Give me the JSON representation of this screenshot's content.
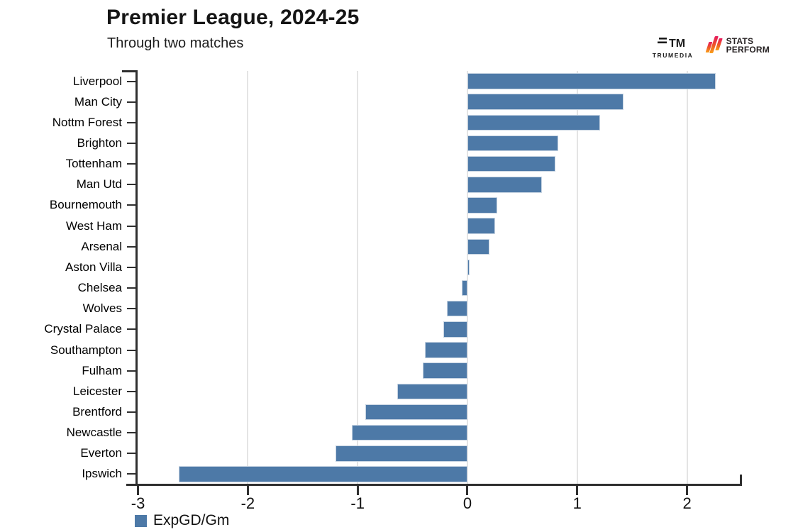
{
  "header": {
    "title": "Premier League, 2024-25",
    "subtitle": "Through two matches"
  },
  "branding": {
    "trumedia_icon_text": "TM",
    "trumedia_label": "TRUMEDIA",
    "statsperform_line1": "STATS",
    "statsperform_line2": "PERFORM"
  },
  "legend": {
    "label": "ExpGD/Gm"
  },
  "colors": {
    "bar": "#4d79a7",
    "bar_border": "#c7d4e2",
    "axis": "#2f2f2f",
    "gridline": "#e4e4e4"
  },
  "chart_data": {
    "type": "bar",
    "orientation": "horizontal",
    "title": "Premier League, 2024-25",
    "subtitle": "Through two matches",
    "series_label": "ExpGD/Gm",
    "legend_position": "bottom-left",
    "grid": true,
    "xlim": [
      -3.01,
      2.5
    ],
    "x_ticks": [
      {
        "label": "-3",
        "value": -3,
        "gridline": false
      },
      {
        "label": "-2",
        "value": -2,
        "gridline": true
      },
      {
        "label": "-1",
        "value": -1,
        "gridline": true
      },
      {
        "label": "0",
        "value": 0,
        "gridline": true
      },
      {
        "label": "1",
        "value": 1,
        "gridline": true
      },
      {
        "label": "2",
        "value": 2,
        "gridline": true
      }
    ],
    "categories": [
      "Liverpool",
      "Man City",
      "Nottm Forest",
      "Brighton",
      "Tottenham",
      "Man Utd",
      "Bournemouth",
      "West Ham",
      "Arsenal",
      "Aston Villa",
      "Chelsea",
      "Wolves",
      "Crystal Palace",
      "Southampton",
      "Fulham",
      "Leicester",
      "Brentford",
      "Newcastle",
      "Everton",
      "Ipswich"
    ],
    "values": [
      2.26,
      1.42,
      1.21,
      0.83,
      0.8,
      0.68,
      0.27,
      0.25,
      0.2,
      0.02,
      -0.05,
      -0.19,
      -0.22,
      -0.39,
      -0.41,
      -0.64,
      -0.93,
      -1.05,
      -1.2,
      -2.63
    ]
  }
}
